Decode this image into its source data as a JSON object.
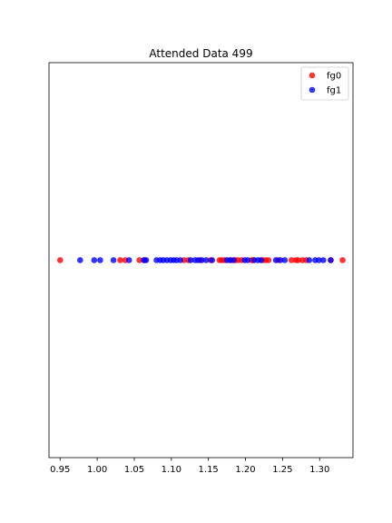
{
  "chart_data": {
    "type": "scatter",
    "title": "Attended Data 499",
    "xlabel": "",
    "ylabel": "",
    "xlim": [
      0.935,
      1.345
    ],
    "ylim": [
      -1,
      1
    ],
    "y_ticks_visible": false,
    "grid": false,
    "legend_position": "top-right",
    "x_ticks": [
      0.95,
      1.0,
      1.05,
      1.1,
      1.15,
      1.2,
      1.25,
      1.3
    ],
    "x_tick_labels": [
      "0.95",
      "1.00",
      "1.05",
      "1.10",
      "1.15",
      "1.20",
      "1.25",
      "1.30"
    ],
    "series": [
      {
        "name": "fg0",
        "color": "#ff0000",
        "y": 0,
        "x": [
          0.95,
          1.031,
          1.038,
          1.057,
          1.064,
          1.117,
          1.123,
          1.139,
          1.153,
          1.165,
          1.168,
          1.172,
          1.181,
          1.186,
          1.19,
          1.195,
          1.208,
          1.21,
          1.223,
          1.227,
          1.231,
          1.244,
          1.262,
          1.268,
          1.271,
          1.277,
          1.282,
          1.315,
          1.331
        ]
      },
      {
        "name": "fg1",
        "color": "#0000ff",
        "y": 0,
        "x": [
          0.977,
          0.996,
          1.004,
          1.022,
          1.043,
          1.063,
          1.066,
          1.08,
          1.085,
          1.089,
          1.094,
          1.099,
          1.103,
          1.107,
          1.112,
          1.126,
          1.132,
          1.136,
          1.141,
          1.147,
          1.155,
          1.175,
          1.179,
          1.184,
          1.199,
          1.203,
          1.212,
          1.217,
          1.221,
          1.241,
          1.247,
          1.253,
          1.286,
          1.294,
          1.299,
          1.305,
          1.315
        ]
      }
    ]
  }
}
